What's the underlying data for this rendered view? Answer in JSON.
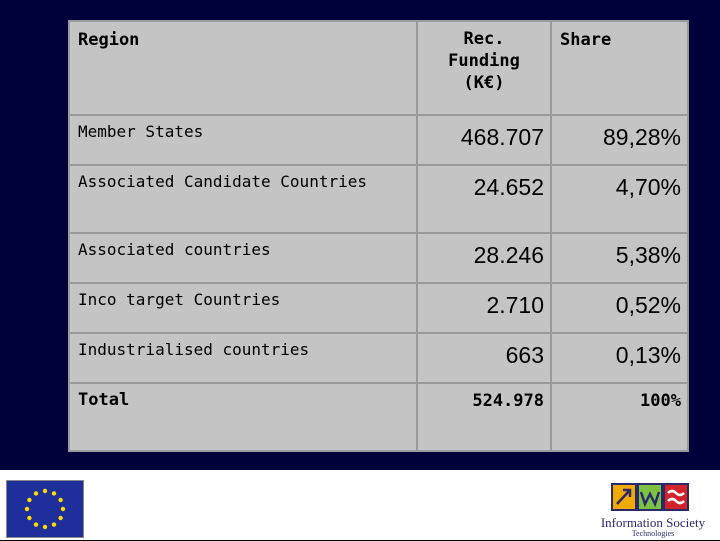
{
  "table": {
    "headers": {
      "region": "Region",
      "funding_l1": "Rec.",
      "funding_l2": "Funding",
      "funding_l3": "(K€)",
      "share": "Share"
    },
    "rows": [
      {
        "region": "Member States",
        "funding": "468.707",
        "share": "89,28%"
      },
      {
        "region": "Associated Candidate Countries",
        "funding": "24.652",
        "share": "4,70%"
      },
      {
        "region": "Associated countries",
        "funding": "28.246",
        "share": "5,38%"
      },
      {
        "region": "Inco target Countries",
        "funding": "2.710",
        "share": "0,52%"
      },
      {
        "region": "Industrialised countries",
        "funding": "663",
        "share": "0,13%"
      }
    ],
    "total": {
      "region": "Total",
      "funding": "524.978",
      "share": "100%"
    }
  },
  "footer": {
    "left_logo": "eu-flag-icon",
    "right_logo_text": "Information Society",
    "right_logo_subtext": "Technologies"
  },
  "colors": {
    "background": "#00003a",
    "table_fill": "#c4c4c4",
    "table_border": "#9a9a9a",
    "flag_blue": "#1e2f9b",
    "flag_star": "#ffdd00"
  }
}
